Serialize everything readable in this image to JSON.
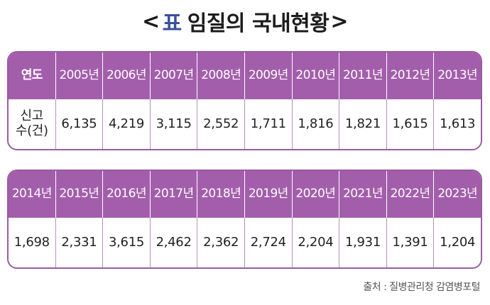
{
  "title": {
    "open_bracket": "<",
    "tag": "표",
    "text": "임질의 국내현황",
    "close_bracket": ">"
  },
  "table1": {
    "header_label": "연도",
    "row_label_line1": "신고",
    "row_label_line2": "수(건)",
    "years": [
      "2005년",
      "2006년",
      "2007년",
      "2008년",
      "2009년",
      "2010년",
      "2011년",
      "2012년",
      "2013년"
    ],
    "values": [
      "6,135",
      "4,219",
      "3,115",
      "2,552",
      "1,711",
      "1,816",
      "1,821",
      "1,615",
      "1,613"
    ]
  },
  "table2": {
    "years": [
      "2014년",
      "2015년",
      "2016년",
      "2017년",
      "2018년",
      "2019년",
      "2020년",
      "2021년",
      "2022년",
      "2023년"
    ],
    "values": [
      "1,698",
      "2,331",
      "3,615",
      "2,462",
      "2,362",
      "2,724",
      "2,204",
      "1,931",
      "1,391",
      "1,204"
    ]
  },
  "source": "출처 : 질병관리청 감염병포털",
  "colors": {
    "header_purple": "#a35eab",
    "border_purple": "#9a5aa3",
    "title_tag_blue": "#3a4fa0"
  }
}
